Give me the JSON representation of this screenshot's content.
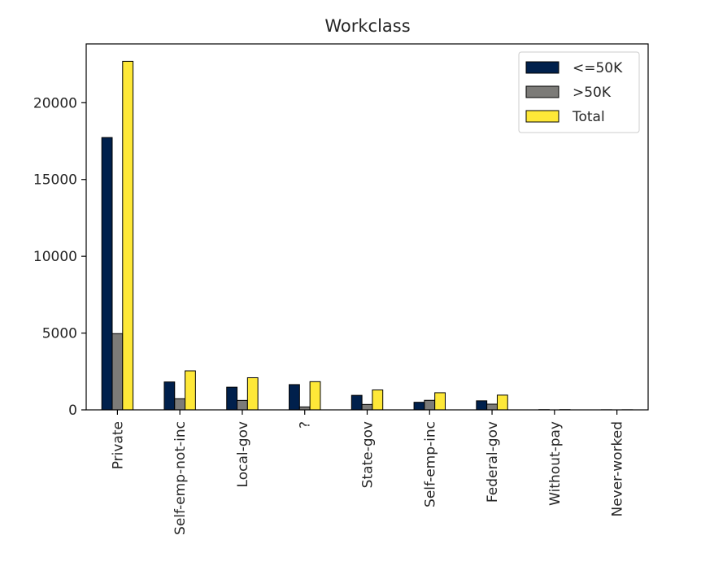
{
  "chart_data": {
    "type": "bar",
    "title": "Workclass",
    "xlabel": "",
    "ylabel": "",
    "categories": [
      "Private",
      "Self-emp-not-inc",
      "Local-gov",
      "?",
      "State-gov",
      "Self-emp-inc",
      "Federal-gov",
      "Without-pay",
      "Never-worked"
    ],
    "series": [
      {
        "name": "<=50K",
        "color": "#00204c",
        "values": [
          17733,
          1817,
          1476,
          1645,
          945,
          494,
          589,
          14,
          7
        ]
      },
      {
        "name": ">50K",
        "color": "#7c7b78",
        "values": [
          4963,
          724,
          617,
          191,
          353,
          622,
          371,
          0,
          0
        ]
      },
      {
        "name": "Total",
        "color": "#fee838",
        "values": [
          22696,
          2541,
          2093,
          1836,
          1298,
          1116,
          960,
          14,
          7
        ]
      }
    ],
    "ylim": [
      0,
      23830
    ],
    "yticks": [
      0,
      5000,
      10000,
      15000,
      20000
    ],
    "legend_position": "top-right",
    "grid": false
  }
}
